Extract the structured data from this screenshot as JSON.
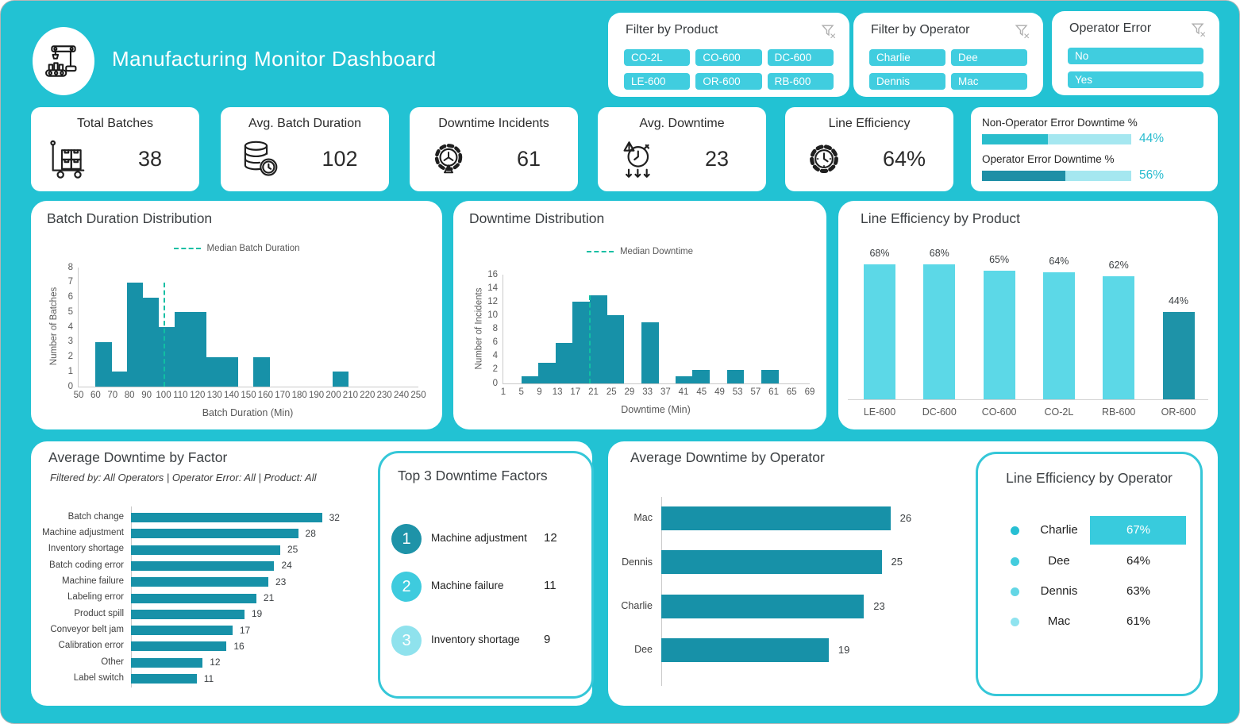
{
  "header": {
    "title": "Manufacturing Monitor Dashboard",
    "logo_icon": "factory-robot-icon"
  },
  "filters": [
    {
      "id": "product",
      "title": "Filter by Product",
      "icon": "clear-filter-icon",
      "columns": 3,
      "options": [
        "CO-2L",
        "CO-600",
        "DC-600",
        "LE-600",
        "OR-600",
        "RB-600"
      ]
    },
    {
      "id": "operator",
      "title": "Filter by Operator",
      "icon": "clear-filter-icon",
      "columns": 2,
      "options": [
        "Charlie",
        "Dee",
        "Dennis",
        "Mac"
      ]
    },
    {
      "id": "operator-error",
      "title": "Operator Error",
      "icon": "clear-filter-icon",
      "columns": 1,
      "options": [
        "No",
        "Yes"
      ]
    }
  ],
  "kpis": [
    {
      "label": "Total Batches",
      "value": "38",
      "icon": "hand-truck-icon"
    },
    {
      "label": "Avg. Batch Duration",
      "value": "102",
      "icon": "database-clock-icon"
    },
    {
      "label": "Downtime Incidents",
      "value": "61",
      "icon": "gear-alert-icon"
    },
    {
      "label": "Avg. Downtime",
      "value": "23",
      "icon": "clock-down-icon"
    },
    {
      "label": "Line Efficiency",
      "value": "64%",
      "icon": "gear-clock-icon"
    }
  ],
  "downtime_split": [
    {
      "label": "Non-Operator Error Downtime %",
      "value": "44%",
      "pct": 44,
      "fill": "#29bdcc"
    },
    {
      "label": "Operator Error Downtime %",
      "value": "56%",
      "pct": 56,
      "fill": "#1e8fa6"
    }
  ],
  "colors": {
    "background": "#22c2d3",
    "slicer_button": "#40cddf",
    "bar_teal": "#1791a8",
    "bar_light_cyan": "#5cd8e7",
    "bar_dark": "#1e93a8",
    "median_line": "#11bfa3",
    "highlight": "#38cbdd",
    "track_light": "#a5e7f0",
    "value_cyan": "#29bccf"
  },
  "chart_data": [
    {
      "id": "batch_duration_distribution",
      "type": "bar",
      "title": "Batch Duration Distribution",
      "xlabel": "Batch Duration (Min)",
      "ylabel": "Number of Batches",
      "xlim": [
        50,
        250
      ],
      "ylim": [
        0,
        8
      ],
      "x_ticks": [
        50,
        60,
        70,
        80,
        90,
        100,
        110,
        120,
        130,
        140,
        150,
        160,
        170,
        180,
        190,
        200,
        210,
        220,
        230,
        240,
        250
      ],
      "y_ticks": [
        0,
        1,
        2,
        3,
        4,
        5,
        6,
        7,
        8
      ],
      "bin_start": 60,
      "bin_width": 9.3,
      "counts": [
        3,
        1,
        7,
        6,
        4,
        5,
        5,
        2,
        2,
        0,
        2,
        0,
        0,
        0,
        0,
        1
      ],
      "median": {
        "label": "Median Batch Duration",
        "x": 100
      },
      "bar_color": "#1791a8",
      "median_color": "#11bfa3",
      "legend_position": "top",
      "grid": false
    },
    {
      "id": "downtime_distribution",
      "type": "bar",
      "title": "Downtime Distribution",
      "xlabel": "Downtime (Min)",
      "ylabel": "Number of Incidents",
      "xlim": [
        1,
        69
      ],
      "ylim": [
        0,
        16
      ],
      "x_ticks": [
        1,
        5,
        9,
        13,
        17,
        21,
        25,
        29,
        33,
        37,
        41,
        45,
        49,
        53,
        57,
        61,
        65,
        69
      ],
      "y_ticks": [
        0,
        2,
        4,
        6,
        8,
        10,
        12,
        14,
        16
      ],
      "bin_start": 5,
      "bin_width": 3.8,
      "counts": [
        1,
        3,
        6,
        12,
        13,
        10,
        0,
        9,
        0,
        1,
        2,
        0,
        2,
        0,
        2
      ],
      "median": {
        "label": "Median Downtime",
        "x": 20
      },
      "bar_color": "#1791a8",
      "median_color": "#11bfa3",
      "legend_position": "top",
      "grid": false
    },
    {
      "id": "line_efficiency_by_product",
      "type": "bar",
      "title": "Line Efficiency by Product",
      "categories": [
        "LE-600",
        "DC-600",
        "CO-600",
        "CO-2L",
        "RB-600",
        "OR-600"
      ],
      "values": [
        68,
        68,
        65,
        64,
        62,
        44
      ],
      "labels": [
        "68%",
        "68%",
        "65%",
        "64%",
        "62%",
        "44%"
      ],
      "bar_colors": [
        "#5cd8e7",
        "#5cd8e7",
        "#5cd8e7",
        "#5cd8e7",
        "#5cd8e7",
        "#1e93a8"
      ],
      "ylim": [
        0,
        100
      ],
      "grid": false
    },
    {
      "id": "average_downtime_by_factor",
      "type": "bar",
      "orientation": "horizontal",
      "title": "Average Downtime by Factor",
      "subtitle": "Filtered by:  All Operators  |  Operator Error:  All  |  Product:  All",
      "categories": [
        "Batch change",
        "Machine adjustment",
        "Inventory shortage",
        "Batch coding error",
        "Machine failure",
        "Labeling error",
        "Product spill",
        "Conveyor belt jam",
        "Calibration error",
        "Other",
        "Label switch"
      ],
      "values": [
        32,
        28,
        25,
        24,
        23,
        21,
        19,
        17,
        16,
        12,
        11
      ],
      "bar_color": "#1791a8",
      "grid": false
    },
    {
      "id": "top3_downtime_factors",
      "type": "table",
      "title": "Top 3 Downtime Factors",
      "rows": [
        {
          "rank": "1",
          "label": "Machine adjustment",
          "value": "12",
          "circle_color": "#1e93a8"
        },
        {
          "rank": "2",
          "label": "Machine failure",
          "value": "11",
          "circle_color": "#3ecbde"
        },
        {
          "rank": "3",
          "label": "Inventory shortage",
          "value": "9",
          "circle_color": "#8fe2ed"
        }
      ]
    },
    {
      "id": "average_downtime_by_operator",
      "type": "bar",
      "orientation": "horizontal",
      "title": "Average Downtime by Operator",
      "categories": [
        "Mac",
        "Dennis",
        "Charlie",
        "Dee"
      ],
      "values": [
        26,
        25,
        23,
        19
      ],
      "bar_color": "#1791a8",
      "grid": false
    },
    {
      "id": "line_efficiency_by_operator",
      "type": "table",
      "title": "Line Efficiency by Operator",
      "highlight_color": "#38cbdd",
      "rows": [
        {
          "name": "Charlie",
          "value": "67%",
          "dot_color": "#27bfd3",
          "highlighted": true
        },
        {
          "name": "Dee",
          "value": "64%",
          "dot_color": "#43ccdd",
          "highlighted": false
        },
        {
          "name": "Dennis",
          "value": "63%",
          "dot_color": "#63d6e5",
          "highlighted": false
        },
        {
          "name": "Mac",
          "value": "61%",
          "dot_color": "#8fe3ef",
          "highlighted": false
        }
      ]
    }
  ]
}
